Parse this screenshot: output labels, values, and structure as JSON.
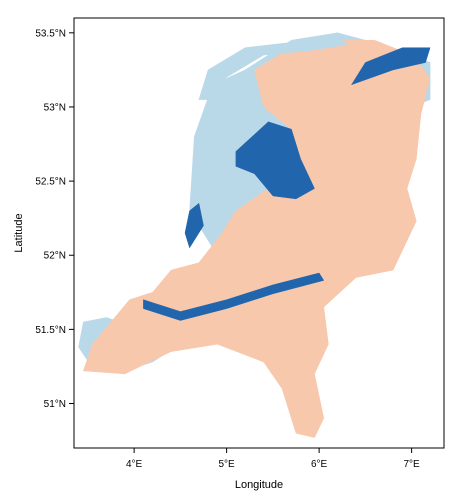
{
  "figure": {
    "xlabel": "Longitude",
    "ylabel": "Latitude"
  },
  "chart_data": {
    "type": "heatmap",
    "title": "",
    "xlabel": "Longitude",
    "ylabel": "Latitude",
    "xlim": [
      3.35,
      7.35
    ],
    "ylim": [
      50.7,
      53.6
    ],
    "x_ticks": [
      {
        "value": 4,
        "label": "4°E"
      },
      {
        "value": 5,
        "label": "5°E"
      },
      {
        "value": 6,
        "label": "6°E"
      },
      {
        "value": 7,
        "label": "7°E"
      }
    ],
    "y_ticks": [
      {
        "value": 51.0,
        "label": "51°N"
      },
      {
        "value": 51.5,
        "label": "51.5°N"
      },
      {
        "value": 52.0,
        "label": "52°N"
      },
      {
        "value": 52.5,
        "label": "52.5°N"
      },
      {
        "value": 53.0,
        "label": "53°N"
      },
      {
        "value": 53.5,
        "label": "53.5°N"
      }
    ],
    "grid": false,
    "legend": "none",
    "categories": [
      {
        "id": "peach",
        "color": "#f8c8ad"
      },
      {
        "id": "light-blue",
        "color": "#b9d9e9"
      },
      {
        "id": "dark-blue",
        "color": "#2166ac"
      }
    ],
    "regions": [
      {
        "category": "light-blue",
        "lonlat": [
          [
            3.4,
            51.38
          ],
          [
            3.55,
            51.24
          ],
          [
            3.9,
            51.22
          ],
          [
            4.2,
            51.28
          ],
          [
            4.5,
            51.4
          ],
          [
            4.8,
            51.55
          ],
          [
            5.05,
            51.75
          ],
          [
            4.85,
            52.05
          ],
          [
            4.6,
            52.3
          ],
          [
            4.65,
            52.8
          ],
          [
            4.85,
            53.15
          ],
          [
            5.2,
            53.25
          ],
          [
            5.7,
            53.45
          ],
          [
            6.2,
            53.5
          ],
          [
            6.8,
            53.4
          ],
          [
            7.2,
            53.3
          ],
          [
            7.2,
            53.05
          ],
          [
            6.8,
            52.95
          ],
          [
            6.5,
            52.85
          ],
          [
            6.15,
            52.5
          ],
          [
            5.95,
            52.1
          ],
          [
            5.7,
            51.85
          ],
          [
            5.3,
            51.72
          ],
          [
            4.8,
            51.65
          ],
          [
            4.2,
            51.48
          ],
          [
            3.7,
            51.58
          ],
          [
            3.45,
            51.55
          ]
        ]
      },
      {
        "category": "peach",
        "lonlat": [
          [
            3.45,
            51.22
          ],
          [
            3.9,
            51.2
          ],
          [
            4.4,
            51.35
          ],
          [
            4.9,
            51.4
          ],
          [
            5.4,
            51.28
          ],
          [
            5.6,
            51.1
          ],
          [
            5.75,
            50.8
          ],
          [
            5.95,
            50.77
          ],
          [
            6.05,
            50.9
          ],
          [
            5.95,
            51.2
          ],
          [
            6.1,
            51.4
          ],
          [
            6.05,
            51.65
          ],
          [
            6.4,
            51.85
          ],
          [
            6.8,
            51.9
          ],
          [
            7.05,
            52.23
          ],
          [
            6.95,
            52.45
          ],
          [
            7.05,
            52.65
          ],
          [
            7.1,
            52.95
          ],
          [
            7.2,
            53.2
          ],
          [
            7.0,
            53.35
          ],
          [
            6.6,
            53.45
          ],
          [
            6.1,
            53.45
          ],
          [
            5.7,
            53.4
          ],
          [
            5.3,
            53.25
          ],
          [
            5.4,
            53.0
          ],
          [
            5.7,
            52.85
          ],
          [
            5.8,
            52.6
          ],
          [
            5.45,
            52.45
          ],
          [
            5.1,
            52.3
          ],
          [
            4.95,
            52.15
          ],
          [
            4.7,
            51.95
          ],
          [
            4.4,
            51.9
          ],
          [
            4.2,
            51.75
          ],
          [
            3.95,
            51.7
          ],
          [
            3.75,
            51.55
          ],
          [
            3.55,
            51.4
          ]
        ]
      },
      {
        "category": "light-blue",
        "lonlat": [
          [
            4.7,
            53.05
          ],
          [
            4.8,
            53.25
          ],
          [
            5.2,
            53.4
          ],
          [
            5.9,
            53.45
          ],
          [
            6.2,
            53.5
          ],
          [
            6.3,
            53.42
          ],
          [
            5.9,
            53.38
          ],
          [
            5.4,
            53.35
          ],
          [
            5.0,
            53.2
          ],
          [
            4.85,
            53.05
          ]
        ]
      },
      {
        "category": "dark-blue",
        "lonlat": [
          [
            5.1,
            52.7
          ],
          [
            5.45,
            52.9
          ],
          [
            5.7,
            52.85
          ],
          [
            5.8,
            52.65
          ],
          [
            5.95,
            52.45
          ],
          [
            5.75,
            52.38
          ],
          [
            5.5,
            52.4
          ],
          [
            5.3,
            52.55
          ],
          [
            5.1,
            52.6
          ]
        ]
      },
      {
        "category": "dark-blue",
        "lonlat": [
          [
            4.1,
            51.7
          ],
          [
            4.5,
            51.62
          ],
          [
            5.0,
            51.7
          ],
          [
            5.5,
            51.8
          ],
          [
            6.0,
            51.88
          ],
          [
            6.05,
            51.83
          ],
          [
            5.5,
            51.74
          ],
          [
            5.0,
            51.64
          ],
          [
            4.5,
            51.56
          ],
          [
            4.1,
            51.64
          ]
        ]
      },
      {
        "category": "dark-blue",
        "lonlat": [
          [
            4.6,
            52.05
          ],
          [
            4.75,
            52.2
          ],
          [
            4.7,
            52.35
          ],
          [
            4.6,
            52.3
          ],
          [
            4.55,
            52.15
          ]
        ]
      },
      {
        "category": "dark-blue",
        "lonlat": [
          [
            6.35,
            53.15
          ],
          [
            6.8,
            53.25
          ],
          [
            7.15,
            53.3
          ],
          [
            7.2,
            53.4
          ],
          [
            6.9,
            53.4
          ],
          [
            6.5,
            53.3
          ]
        ]
      }
    ]
  }
}
